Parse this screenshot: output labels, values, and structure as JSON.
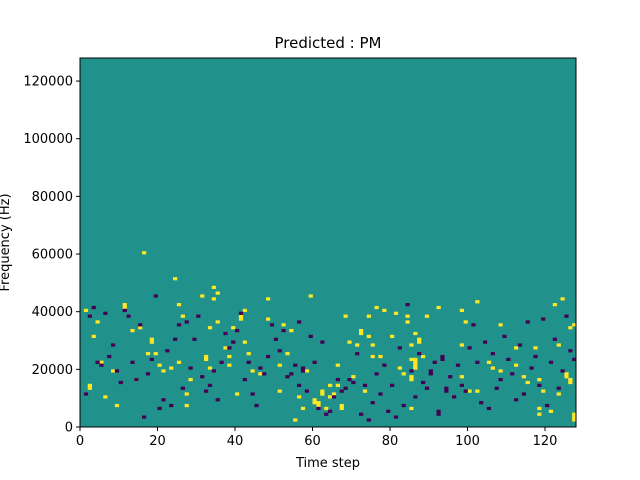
{
  "chart_data": {
    "type": "heatmap",
    "title": "Predicted : PM",
    "xlabel": "Time step",
    "ylabel": "Frequency (Hz)",
    "xlim": [
      0,
      128
    ],
    "ylim": [
      0,
      128000
    ],
    "x_ticks": [
      0,
      20,
      40,
      60,
      80,
      100,
      120
    ],
    "y_ticks": [
      0,
      20000,
      40000,
      60000,
      80000,
      100000,
      120000
    ],
    "x_tick_labels": [
      "0",
      "20",
      "40",
      "60",
      "80",
      "100",
      "120"
    ],
    "y_tick_labels": [
      "0",
      "20000",
      "40000",
      "60000",
      "80000",
      "100000",
      "120000"
    ],
    "grid": false,
    "colors": {
      "low": "#440154",
      "mid": "#21918c",
      "high": "#fde725"
    },
    "background_value": 0,
    "cells": {
      "high": [
        [
          1,
          40
        ],
        [
          2,
          13
        ],
        [
          2,
          14
        ],
        [
          3,
          31
        ],
        [
          4,
          36
        ],
        [
          5,
          22
        ],
        [
          6,
          10
        ],
        [
          8,
          19
        ],
        [
          9,
          7
        ],
        [
          11,
          41
        ],
        [
          11,
          42
        ],
        [
          13,
          33
        ],
        [
          14,
          16
        ],
        [
          15,
          34
        ],
        [
          16,
          60
        ],
        [
          17,
          25
        ],
        [
          18,
          29
        ],
        [
          18,
          30
        ],
        [
          19,
          25
        ],
        [
          20,
          21
        ],
        [
          21,
          19
        ],
        [
          23,
          20
        ],
        [
          24,
          51
        ],
        [
          25,
          22
        ],
        [
          25,
          42
        ],
        [
          26,
          38
        ],
        [
          27,
          7
        ],
        [
          27,
          11
        ],
        [
          28,
          16
        ],
        [
          31,
          45
        ],
        [
          32,
          23
        ],
        [
          32,
          24
        ],
        [
          33,
          20
        ],
        [
          33,
          34
        ],
        [
          34,
          44
        ],
        [
          34,
          48
        ],
        [
          35,
          36
        ],
        [
          35,
          46
        ],
        [
          37,
          27
        ],
        [
          38,
          24
        ],
        [
          38,
          21
        ],
        [
          39,
          34
        ],
        [
          40,
          11
        ],
        [
          41,
          37
        ],
        [
          41,
          38
        ],
        [
          42,
          29
        ],
        [
          42,
          40
        ],
        [
          43,
          25
        ],
        [
          44,
          19
        ],
        [
          46,
          18
        ],
        [
          48,
          37
        ],
        [
          48,
          44
        ],
        [
          51,
          21
        ],
        [
          51,
          12
        ],
        [
          52,
          35
        ],
        [
          53,
          25
        ],
        [
          54,
          33
        ],
        [
          55,
          2
        ],
        [
          56,
          10
        ],
        [
          57,
          6
        ],
        [
          58,
          19
        ],
        [
          59,
          45
        ],
        [
          60,
          8
        ],
        [
          60,
          9
        ],
        [
          61,
          7
        ],
        [
          61,
          8
        ],
        [
          62,
          11
        ],
        [
          62,
          12
        ],
        [
          63,
          6
        ],
        [
          64,
          10
        ],
        [
          64,
          14
        ],
        [
          65,
          11
        ],
        [
          66,
          14
        ],
        [
          66,
          21
        ],
        [
          67,
          6
        ],
        [
          67,
          7
        ],
        [
          68,
          38
        ],
        [
          69,
          29
        ],
        [
          70,
          17
        ],
        [
          71,
          28
        ],
        [
          72,
          32
        ],
        [
          72,
          33
        ],
        [
          73,
          12
        ],
        [
          74,
          31
        ],
        [
          74,
          38
        ],
        [
          75,
          28
        ],
        [
          75,
          24
        ],
        [
          76,
          41
        ],
        [
          77,
          24
        ],
        [
          78,
          40
        ],
        [
          80,
          31
        ],
        [
          81,
          39
        ],
        [
          82,
          20
        ],
        [
          83,
          18
        ],
        [
          84,
          36
        ],
        [
          84,
          38
        ],
        [
          85,
          6
        ],
        [
          85,
          16
        ],
        [
          85,
          17
        ],
        [
          85,
          23
        ],
        [
          85,
          28
        ],
        [
          86,
          20
        ],
        [
          86,
          21
        ],
        [
          86,
          22
        ],
        [
          86,
          23
        ],
        [
          86,
          32
        ],
        [
          87,
          29
        ],
        [
          87,
          30
        ],
        [
          88,
          24
        ],
        [
          89,
          38
        ],
        [
          92,
          41
        ],
        [
          98,
          17
        ],
        [
          98,
          28
        ],
        [
          98,
          40
        ],
        [
          99,
          36
        ],
        [
          100,
          12
        ],
        [
          102,
          12
        ],
        [
          102,
          43
        ],
        [
          105,
          22
        ],
        [
          106,
          20
        ],
        [
          108,
          19
        ],
        [
          108,
          35
        ],
        [
          112,
          27
        ],
        [
          112,
          21
        ],
        [
          114,
          17
        ],
        [
          115,
          15
        ],
        [
          117,
          27
        ],
        [
          118,
          4
        ],
        [
          118,
          6
        ],
        [
          118,
          16
        ],
        [
          119,
          12
        ],
        [
          121,
          5
        ],
        [
          122,
          42
        ],
        [
          123,
          11
        ],
        [
          123,
          28
        ],
        [
          124,
          44
        ],
        [
          125,
          17
        ],
        [
          125,
          18
        ],
        [
          126,
          15
        ],
        [
          126,
          16
        ],
        [
          127,
          2
        ],
        [
          127,
          3
        ],
        [
          127,
          4
        ],
        [
          126,
          34
        ],
        [
          127,
          35
        ]
      ],
      "low": [
        [
          1,
          11
        ],
        [
          2,
          38
        ],
        [
          3,
          41
        ],
        [
          4,
          22
        ],
        [
          5,
          21
        ],
        [
          6,
          39
        ],
        [
          7,
          24
        ],
        [
          8,
          28
        ],
        [
          9,
          19
        ],
        [
          10,
          15
        ],
        [
          11,
          40
        ],
        [
          12,
          38
        ],
        [
          13,
          22
        ],
        [
          14,
          16
        ],
        [
          15,
          35
        ],
        [
          16,
          3
        ],
        [
          17,
          18
        ],
        [
          18,
          23
        ],
        [
          19,
          45
        ],
        [
          20,
          6
        ],
        [
          21,
          9
        ],
        [
          22,
          26
        ],
        [
          23,
          7
        ],
        [
          24,
          30
        ],
        [
          25,
          35
        ],
        [
          26,
          13
        ],
        [
          27,
          36
        ],
        [
          28,
          20
        ],
        [
          29,
          30
        ],
        [
          30,
          38
        ],
        [
          31,
          17
        ],
        [
          32,
          12
        ],
        [
          33,
          14
        ],
        [
          34,
          19
        ],
        [
          35,
          9
        ],
        [
          36,
          22
        ],
        [
          37,
          32
        ],
        [
          38,
          27
        ],
        [
          39,
          29
        ],
        [
          40,
          33
        ],
        [
          41,
          39
        ],
        [
          42,
          16
        ],
        [
          43,
          22
        ],
        [
          44,
          11
        ],
        [
          45,
          7
        ],
        [
          46,
          20
        ],
        [
          47,
          18
        ],
        [
          48,
          24
        ],
        [
          49,
          35
        ],
        [
          50,
          30
        ],
        [
          51,
          26
        ],
        [
          52,
          33
        ],
        [
          53,
          17
        ],
        [
          54,
          18
        ],
        [
          55,
          21
        ],
        [
          56,
          14
        ],
        [
          56,
          36
        ],
        [
          57,
          19
        ],
        [
          57,
          20
        ],
        [
          58,
          12
        ],
        [
          59,
          31
        ],
        [
          60,
          22
        ],
        [
          61,
          6
        ],
        [
          62,
          29
        ],
        [
          63,
          4
        ],
        [
          64,
          5
        ],
        [
          65,
          10
        ],
        [
          66,
          16
        ],
        [
          67,
          12
        ],
        [
          68,
          13
        ],
        [
          69,
          16
        ],
        [
          70,
          15
        ],
        [
          71,
          25
        ],
        [
          72,
          4
        ],
        [
          73,
          14
        ],
        [
          74,
          2
        ],
        [
          75,
          8
        ],
        [
          76,
          18
        ],
        [
          77,
          11
        ],
        [
          78,
          21
        ],
        [
          79,
          5
        ],
        [
          80,
          14
        ],
        [
          81,
          3
        ],
        [
          82,
          27
        ],
        [
          83,
          7
        ],
        [
          84,
          42
        ],
        [
          85,
          19
        ],
        [
          86,
          10
        ],
        [
          87,
          25
        ],
        [
          88,
          15
        ],
        [
          89,
          13
        ],
        [
          90,
          18
        ],
        [
          90,
          19
        ],
        [
          91,
          22
        ],
        [
          92,
          4
        ],
        [
          92,
          5
        ],
        [
          93,
          23
        ],
        [
          93,
          24
        ],
        [
          94,
          12
        ],
        [
          94,
          13
        ],
        [
          95,
          17
        ],
        [
          96,
          10
        ],
        [
          97,
          21
        ],
        [
          98,
          14
        ],
        [
          99,
          12
        ],
        [
          100,
          27
        ],
        [
          101,
          35
        ],
        [
          102,
          22
        ],
        [
          103,
          8
        ],
        [
          104,
          29
        ],
        [
          105,
          6
        ],
        [
          106,
          25
        ],
        [
          107,
          13
        ],
        [
          108,
          16
        ],
        [
          109,
          31
        ],
        [
          110,
          23
        ],
        [
          111,
          18
        ],
        [
          112,
          9
        ],
        [
          113,
          28
        ],
        [
          114,
          11
        ],
        [
          115,
          36
        ],
        [
          116,
          20
        ],
        [
          117,
          24
        ],
        [
          118,
          14
        ],
        [
          119,
          37
        ],
        [
          120,
          7
        ],
        [
          121,
          22
        ],
        [
          122,
          30
        ],
        [
          123,
          13
        ],
        [
          124,
          19
        ],
        [
          125,
          38
        ],
        [
          126,
          26
        ],
        [
          127,
          23
        ]
      ]
    }
  }
}
